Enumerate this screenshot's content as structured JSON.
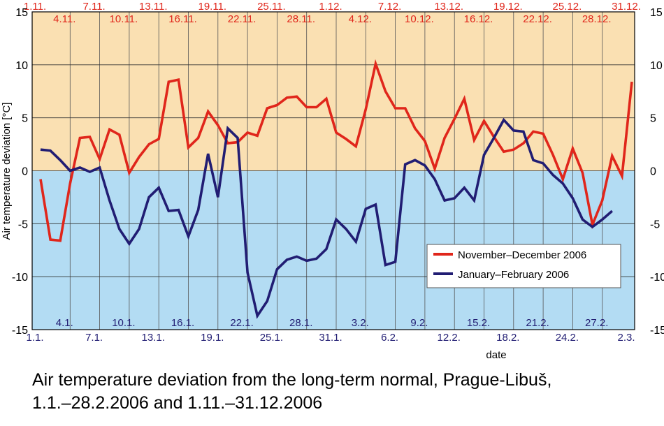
{
  "chart_data": {
    "type": "line",
    "title": "",
    "caption_line1": "Air temperature deviation from the long-term normal, Prague-Libuš,",
    "caption_line2": "1.1.–28.2.2006 and 1.11.–31.12.2006",
    "xlabel": "date",
    "ylabel": "Air temperature deviation [°C]",
    "ylim": [
      -15,
      15
    ],
    "yticks": [
      -15,
      -10,
      -5,
      0,
      5,
      10,
      15
    ],
    "grid": true,
    "legend_position": "lower-right",
    "background_colors": {
      "positive": "#fae0b2",
      "negative": "#b3dcf3"
    },
    "top_row_labels": [
      "1.11.",
      "7.11.",
      "13.11.",
      "19.11.",
      "25.11.",
      "1.12.",
      "7.12.",
      "13.12.",
      "19.12.",
      "25.12.",
      "31.12."
    ],
    "second_row_labels": [
      "4.11.",
      "10.11.",
      "16.11.",
      "22.11.",
      "28.11.",
      "4.12.",
      "10.12.",
      "16.12.",
      "22.12.",
      "28.12."
    ],
    "bottom_row_labels": [
      "1.1.",
      "7.1.",
      "13.1.",
      "19.1.",
      "25.1.",
      "31.1.",
      "6.2.",
      "12.2.",
      "18.2.",
      "24.2.",
      "2.3."
    ],
    "inner_bottom_labels": [
      "4.1.",
      "10.1.",
      "16.1.",
      "22.1.",
      "28.1.",
      "3.2.",
      "9.2.",
      "15.2.",
      "21.2.",
      "27.2."
    ],
    "series": [
      {
        "name": "November–December 2006",
        "color": "#e0261b",
        "values": [
          -0.8,
          -6.5,
          -6.6,
          -1.2,
          3.1,
          3.2,
          1.1,
          3.9,
          3.4,
          -0.2,
          1.3,
          2.5,
          3.0,
          8.4,
          8.6,
          2.2,
          3.1,
          5.6,
          4.3,
          2.6,
          2.7,
          3.6,
          3.3,
          5.9,
          6.2,
          6.9,
          7.0,
          6.0,
          6.0,
          6.8,
          3.6,
          3.0,
          2.3,
          5.8,
          10.1,
          7.5,
          5.9,
          5.9,
          4.0,
          2.8,
          0.2,
          3.1,
          4.9,
          6.8,
          2.9,
          4.7,
          3.2,
          1.8,
          2.0,
          2.6,
          3.7,
          3.5,
          1.5,
          -0.8,
          2.1,
          -0.2,
          -5.1,
          -2.8,
          1.4,
          -0.5,
          8.4
        ]
      },
      {
        "name": "January–February 2006",
        "color": "#211d73",
        "values": [
          2.0,
          1.9,
          1.0,
          0.0,
          0.3,
          -0.1,
          0.3,
          -2.8,
          -5.5,
          -6.9,
          -5.5,
          -2.5,
          -1.6,
          -3.8,
          -3.7,
          -6.2,
          -3.7,
          1.6,
          -2.5,
          4.0,
          3.1,
          -9.6,
          -13.7,
          -12.3,
          -9.3,
          -8.4,
          -8.1,
          -8.5,
          -8.3,
          -7.4,
          -4.6,
          -5.5,
          -6.7,
          -3.6,
          -3.2,
          -8.9,
          -8.6,
          0.6,
          1.0,
          0.5,
          -0.8,
          -2.8,
          -2.6,
          -1.6,
          -2.8,
          1.5,
          3.1,
          4.8,
          3.8,
          3.7,
          1.0,
          0.7,
          -0.4,
          -1.2,
          -2.6,
          -4.6,
          -5.3,
          -4.6,
          -3.8
        ]
      }
    ]
  }
}
